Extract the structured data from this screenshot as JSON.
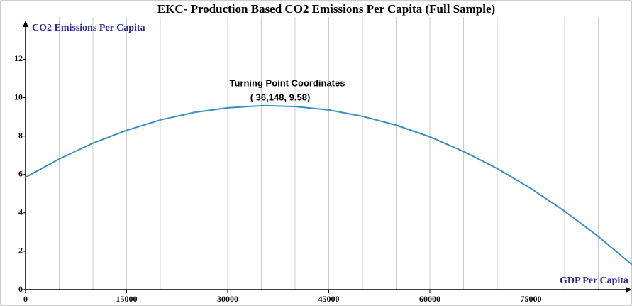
{
  "chart_data": {
    "type": "line",
    "title": "EKC- Production Based CO2 Emissions Per Capita (Full Sample)",
    "y_label": "CO2 Emissions Per Capita",
    "x_label": "GDP Per Capita",
    "annotation": [
      "Turning Point Coordinates",
      "( 36,148, 9.58)"
    ],
    "x": [
      0,
      5000,
      10000,
      15000,
      20000,
      25000,
      30000,
      35000,
      36148,
      40000,
      45000,
      50000,
      55000,
      60000,
      65000,
      70000,
      75000,
      80000,
      85000,
      90000
    ],
    "series": [
      {
        "color": "#3a8fc0",
        "values": [
          5.85,
          6.81,
          7.63,
          8.3,
          8.84,
          9.23,
          9.47,
          9.58,
          9.58,
          9.54,
          9.36,
          9.03,
          8.57,
          7.96,
          7.2,
          6.31,
          5.27,
          4.09,
          2.77,
          1.3
        ]
      }
    ],
    "xlim": [
      0,
      90000
    ],
    "ylim": [
      0,
      14.2
    ],
    "xticks": [
      0,
      15000,
      30000,
      45000,
      60000,
      75000
    ],
    "xgrid": [
      5000,
      10000,
      15000,
      20000,
      25000,
      30000,
      35000,
      40000,
      45000,
      50000,
      55000,
      60000,
      65000,
      70000,
      75000,
      80000,
      85000
    ],
    "yticks": [
      0,
      2,
      4,
      6,
      8,
      10,
      12
    ]
  }
}
